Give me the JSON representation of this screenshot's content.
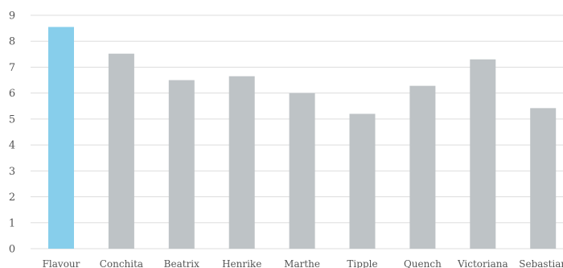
{
  "chart_data": {
    "type": "bar",
    "title": "",
    "xlabel": "",
    "ylabel": "",
    "categories": [
      "Flavour",
      "Conchita",
      "Beatrix",
      "Henrike",
      "Marthe",
      "Tipple",
      "Quench",
      "Victoriana",
      "Sebastian"
    ],
    "values": [
      8.55,
      7.52,
      6.5,
      6.65,
      6.0,
      5.2,
      6.28,
      7.3,
      5.42
    ],
    "ylim": [
      0,
      9
    ],
    "yticks": [
      0,
      1,
      2,
      3,
      4,
      5,
      6,
      7,
      8,
      9
    ],
    "grid": true,
    "colors": {
      "highlight": "#87ceeb",
      "default": "#bec3c6",
      "grid": "#dddddd",
      "text": "#555555"
    },
    "highlight_index": 0
  }
}
